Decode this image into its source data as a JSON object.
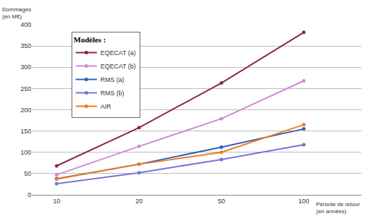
{
  "chart_data": {
    "type": "line",
    "x_label": "Période de retour\n(en années)",
    "y_label": "Dommages\n(en M€)",
    "legend_title": "Modèles :",
    "legend": "top-left",
    "grid": true,
    "marker": "circle",
    "line_style": "solid",
    "categories": [
      "10",
      "20",
      "50",
      "100"
    ],
    "series": [
      {
        "name": "EQECAT (a)",
        "color": "#8e2254",
        "values": [
          68,
          158,
          263,
          382
        ]
      },
      {
        "name": "EQECAT (b)",
        "color": "#d08ad0",
        "values": [
          47,
          114,
          179,
          268
        ]
      },
      {
        "name": "RMS (a)",
        "color": "#2f5fc0",
        "values": [
          38,
          72,
          112,
          155
        ]
      },
      {
        "name": "RMS (b)",
        "color": "#7474d8",
        "values": [
          26,
          52,
          83,
          118
        ]
      },
      {
        "name": "AIR",
        "color": "#f07a20",
        "values": [
          37,
          72,
          100,
          165
        ]
      }
    ],
    "ylim": [
      0,
      400
    ],
    "yticks": [
      0,
      50,
      100,
      150,
      200,
      250,
      300,
      350,
      400
    ]
  }
}
